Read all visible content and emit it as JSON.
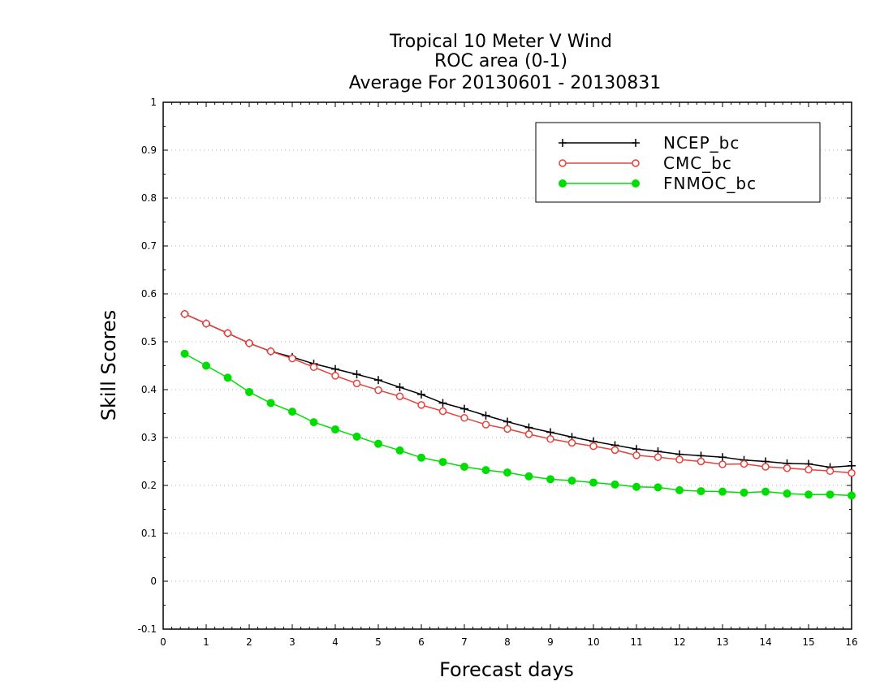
{
  "chart_data": {
    "type": "line",
    "title": [
      "Tropical 10 Meter V Wind",
      "ROC area (0-1)",
      "Average For 20130601 - 20130831"
    ],
    "xlabel": "Forecast days",
    "ylabel": "Skill Scores",
    "xlim": [
      0,
      16
    ],
    "ylim": [
      -0.1,
      1
    ],
    "xticks": [
      "0",
      "1",
      "2",
      "3",
      "4",
      "5",
      "6",
      "7",
      "8",
      "9",
      "10",
      "11",
      "12",
      "13",
      "14",
      "15",
      "16"
    ],
    "yticks": [
      "-0.1",
      "0",
      "0.1",
      "0.2",
      "0.3",
      "0.4",
      "0.5",
      "0.6",
      "0.7",
      "0.8",
      "0.9",
      "1"
    ],
    "grid": true,
    "legend_position": "top-right",
    "x": [
      0.5,
      1,
      1.5,
      2,
      2.5,
      3,
      3.5,
      4,
      4.5,
      5,
      5.5,
      6,
      6.5,
      7,
      7.5,
      8,
      8.5,
      9,
      9.5,
      10,
      10.5,
      11,
      11.5,
      12,
      12.5,
      13,
      13.5,
      14,
      14.5,
      15,
      15.5,
      16
    ],
    "series": [
      {
        "name": "NCEP_bc",
        "color": "#000000",
        "marker": "plus",
        "values": [
          0.558,
          0.538,
          0.518,
          0.497,
          0.48,
          0.468,
          0.454,
          0.443,
          0.432,
          0.42,
          0.405,
          0.39,
          0.372,
          0.36,
          0.346,
          0.333,
          0.321,
          0.311,
          0.301,
          0.292,
          0.284,
          0.276,
          0.271,
          0.265,
          0.262,
          0.259,
          0.253,
          0.25,
          0.246,
          0.245,
          0.238,
          0.241
        ]
      },
      {
        "name": "CMC_bc",
        "color": "#e8403a",
        "marker": "open-circle",
        "values": [
          0.558,
          0.538,
          0.518,
          0.497,
          0.48,
          0.465,
          0.447,
          0.429,
          0.413,
          0.399,
          0.386,
          0.368,
          0.355,
          0.341,
          0.327,
          0.318,
          0.307,
          0.297,
          0.289,
          0.282,
          0.274,
          0.263,
          0.259,
          0.254,
          0.25,
          0.244,
          0.245,
          0.239,
          0.236,
          0.233,
          0.23,
          0.226
        ]
      },
      {
        "name": "FNMOC_bc",
        "color": "#00dd00",
        "marker": "filled-circle",
        "values": [
          0.475,
          0.45,
          0.425,
          0.395,
          0.372,
          0.354,
          0.332,
          0.317,
          0.302,
          0.287,
          0.273,
          0.258,
          0.249,
          0.239,
          0.232,
          0.227,
          0.219,
          0.213,
          0.21,
          0.206,
          0.202,
          0.197,
          0.196,
          0.19,
          0.188,
          0.187,
          0.185,
          0.187,
          0.183,
          0.181,
          0.181,
          0.179
        ]
      }
    ]
  }
}
